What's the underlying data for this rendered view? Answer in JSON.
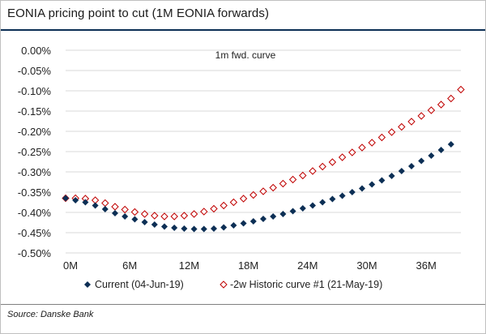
{
  "title": "EONIA pricing point to cut (1M EONIA forwards)",
  "source": "Source: Danske Bank",
  "chart_data": {
    "type": "scatter",
    "annotation": "1m fwd. curve",
    "ylim": [
      -0.5,
      0.0
    ],
    "xlim": [
      0,
      40
    ],
    "y_ticks": [
      0.0,
      -0.05,
      -0.1,
      -0.15,
      -0.2,
      -0.25,
      -0.3,
      -0.35,
      -0.4,
      -0.45,
      -0.5
    ],
    "y_tick_labels": [
      "0.00%",
      "-0.05%",
      "-0.10%",
      "-0.15%",
      "-0.20%",
      "-0.25%",
      "-0.30%",
      "-0.35%",
      "-0.40%",
      "-0.45%",
      "-0.50%"
    ],
    "x_ticks": [
      0,
      6,
      12,
      18,
      24,
      30,
      36
    ],
    "x_tick_labels": [
      "0M",
      "6M",
      "12M",
      "18M",
      "24M",
      "30M",
      "36M"
    ],
    "colors": {
      "current": "#0c2f55",
      "historic": "#c00000"
    },
    "series": [
      {
        "name": "Current (04-Jun-19)",
        "marker": "filled-diamond",
        "x": [
          0,
          1,
          2,
          3,
          4,
          5,
          6,
          7,
          8,
          9,
          10,
          11,
          12,
          13,
          14,
          15,
          16,
          17,
          18,
          19,
          20,
          21,
          22,
          23,
          24,
          25,
          26,
          27,
          28,
          29,
          30,
          31,
          32,
          33,
          34,
          35,
          36,
          37,
          38,
          39
        ],
        "values": [
          -0.365,
          -0.37,
          -0.375,
          -0.383,
          -0.392,
          -0.402,
          -0.41,
          -0.417,
          -0.424,
          -0.43,
          -0.435,
          -0.438,
          -0.44,
          -0.441,
          -0.441,
          -0.44,
          -0.437,
          -0.432,
          -0.427,
          -0.422,
          -0.416,
          -0.41,
          -0.404,
          -0.397,
          -0.39,
          -0.383,
          -0.375,
          -0.367,
          -0.359,
          -0.35,
          -0.341,
          -0.331,
          -0.321,
          -0.31,
          -0.298,
          -0.286,
          -0.273,
          -0.26,
          -0.246,
          -0.232
        ]
      },
      {
        "name": "-2w Historic curve #1 (21-May-19)",
        "marker": "hollow-diamond",
        "x": [
          0,
          1,
          2,
          3,
          4,
          5,
          6,
          7,
          8,
          9,
          10,
          11,
          12,
          13,
          14,
          15,
          16,
          17,
          18,
          19,
          20,
          21,
          22,
          23,
          24,
          25,
          26,
          27,
          28,
          29,
          30,
          31,
          32,
          33,
          34,
          35,
          36,
          37,
          38,
          39,
          40
        ],
        "values": [
          -0.365,
          -0.365,
          -0.366,
          -0.37,
          -0.377,
          -0.386,
          -0.393,
          -0.399,
          -0.404,
          -0.408,
          -0.41,
          -0.41,
          -0.408,
          -0.404,
          -0.398,
          -0.391,
          -0.383,
          -0.375,
          -0.366,
          -0.357,
          -0.348,
          -0.339,
          -0.329,
          -0.319,
          -0.309,
          -0.298,
          -0.287,
          -0.276,
          -0.264,
          -0.252,
          -0.24,
          -0.228,
          -0.215,
          -0.202,
          -0.189,
          -0.176,
          -0.162,
          -0.148,
          -0.134,
          -0.119,
          -0.097
        ]
      }
    ]
  }
}
